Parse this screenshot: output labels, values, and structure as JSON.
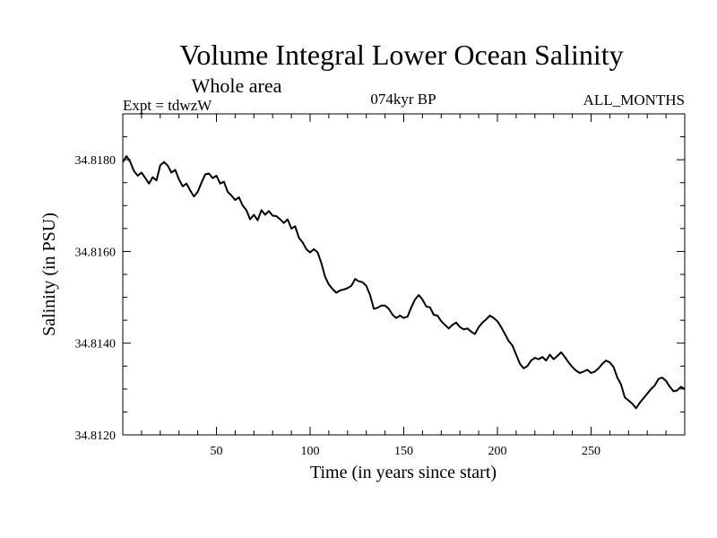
{
  "chart_data": {
    "type": "line",
    "title": "Volume Integral Lower Ocean Salinity",
    "subtitle": "Whole area",
    "experiment": "Expt = tdwzW",
    "period": "074kyr BP",
    "months": "ALL_MONTHS",
    "xlabel": "Time (in years since start)",
    "ylabel": "Salinity (in PSU)",
    "xlim": [
      0,
      300
    ],
    "ylim": [
      34.812,
      34.819
    ],
    "xticks": [
      50,
      100,
      150,
      200,
      250
    ],
    "xtick_labels": [
      "50",
      "100",
      "150",
      "200",
      "250"
    ],
    "yticks": [
      34.812,
      34.814,
      34.816,
      34.818
    ],
    "ytick_labels": [
      "34.8120",
      "34.8140",
      "34.8160",
      "34.8180"
    ],
    "grid": false,
    "series": [
      {
        "points": [
          [
            0,
            34.81795
          ],
          [
            2,
            34.81808
          ],
          [
            4,
            34.81795
          ],
          [
            6,
            34.81775
          ],
          [
            8,
            34.81765
          ],
          [
            10,
            34.81772
          ],
          [
            12,
            34.8176
          ],
          [
            14,
            34.81748
          ],
          [
            16,
            34.81762
          ],
          [
            18,
            34.81755
          ],
          [
            20,
            34.81788
          ],
          [
            22,
            34.81795
          ],
          [
            24,
            34.81787
          ],
          [
            26,
            34.81772
          ],
          [
            28,
            34.81778
          ],
          [
            30,
            34.81757
          ],
          [
            32,
            34.81742
          ],
          [
            34,
            34.81748
          ],
          [
            36,
            34.81733
          ],
          [
            38,
            34.8172
          ],
          [
            40,
            34.8173
          ],
          [
            42,
            34.8175
          ],
          [
            44,
            34.81768
          ],
          [
            46,
            34.8177
          ],
          [
            48,
            34.8176
          ],
          [
            50,
            34.81765
          ],
          [
            52,
            34.81748
          ],
          [
            54,
            34.81752
          ],
          [
            56,
            34.8173
          ],
          [
            58,
            34.81722
          ],
          [
            60,
            34.81712
          ],
          [
            62,
            34.81718
          ],
          [
            64,
            34.817
          ],
          [
            66,
            34.8169
          ],
          [
            68,
            34.8167
          ],
          [
            70,
            34.8168
          ],
          [
            72,
            34.81668
          ],
          [
            74,
            34.8169
          ],
          [
            76,
            34.8168
          ],
          [
            78,
            34.81688
          ],
          [
            80,
            34.81678
          ],
          [
            82,
            34.81677
          ],
          [
            84,
            34.8167
          ],
          [
            86,
            34.81662
          ],
          [
            88,
            34.8167
          ],
          [
            90,
            34.8165
          ],
          [
            92,
            34.81655
          ],
          [
            94,
            34.8163
          ],
          [
            96,
            34.8162
          ],
          [
            98,
            34.81605
          ],
          [
            100,
            34.81598
          ],
          [
            102,
            34.81605
          ],
          [
            104,
            34.81598
          ],
          [
            106,
            34.81575
          ],
          [
            108,
            34.81545
          ],
          [
            110,
            34.81528
          ],
          [
            112,
            34.81518
          ],
          [
            114,
            34.8151
          ],
          [
            116,
            34.81515
          ],
          [
            118,
            34.81517
          ],
          [
            120,
            34.8152
          ],
          [
            122,
            34.81525
          ],
          [
            124,
            34.8154
          ],
          [
            126,
            34.81535
          ],
          [
            128,
            34.81533
          ],
          [
            130,
            34.81525
          ],
          [
            132,
            34.81505
          ],
          [
            134,
            34.81475
          ],
          [
            136,
            34.81477
          ],
          [
            138,
            34.81482
          ],
          [
            140,
            34.81482
          ],
          [
            142,
            34.81475
          ],
          [
            144,
            34.81462
          ],
          [
            146,
            34.81455
          ],
          [
            148,
            34.8146
          ],
          [
            150,
            34.81455
          ],
          [
            152,
            34.81458
          ],
          [
            154,
            34.81478
          ],
          [
            156,
            34.81495
          ],
          [
            158,
            34.81505
          ],
          [
            160,
            34.81495
          ],
          [
            162,
            34.8148
          ],
          [
            164,
            34.81478
          ],
          [
            166,
            34.81462
          ],
          [
            168,
            34.8146
          ],
          [
            170,
            34.81448
          ],
          [
            172,
            34.8144
          ],
          [
            174,
            34.81432
          ],
          [
            176,
            34.8144
          ],
          [
            178,
            34.81445
          ],
          [
            180,
            34.81435
          ],
          [
            182,
            34.8143
          ],
          [
            184,
            34.81432
          ],
          [
            186,
            34.81425
          ],
          [
            188,
            34.8142
          ],
          [
            190,
            34.81435
          ],
          [
            192,
            34.81445
          ],
          [
            194,
            34.81452
          ],
          [
            196,
            34.8146
          ],
          [
            198,
            34.81455
          ],
          [
            200,
            34.81448
          ],
          [
            202,
            34.81435
          ],
          [
            204,
            34.8142
          ],
          [
            206,
            34.81405
          ],
          [
            208,
            34.81395
          ],
          [
            210,
            34.81375
          ],
          [
            212,
            34.81355
          ],
          [
            214,
            34.81345
          ],
          [
            216,
            34.8135
          ],
          [
            218,
            34.81362
          ],
          [
            220,
            34.81368
          ],
          [
            222,
            34.81365
          ],
          [
            224,
            34.8137
          ],
          [
            226,
            34.81362
          ],
          [
            228,
            34.81375
          ],
          [
            230,
            34.81365
          ],
          [
            232,
            34.81372
          ],
          [
            234,
            34.8138
          ],
          [
            236,
            34.8137
          ],
          [
            238,
            34.81358
          ],
          [
            240,
            34.81348
          ],
          [
            242,
            34.8134
          ],
          [
            244,
            34.81335
          ],
          [
            246,
            34.81338
          ],
          [
            248,
            34.81342
          ],
          [
            250,
            34.81335
          ],
          [
            252,
            34.81338
          ],
          [
            254,
            34.81345
          ],
          [
            256,
            34.81355
          ],
          [
            258,
            34.81362
          ],
          [
            260,
            34.81358
          ],
          [
            262,
            34.81348
          ],
          [
            264,
            34.81325
          ],
          [
            266,
            34.8131
          ],
          [
            268,
            34.81282
          ],
          [
            270,
            34.81275
          ],
          [
            272,
            34.81268
          ],
          [
            274,
            34.81258
          ],
          [
            276,
            34.8127
          ],
          [
            278,
            34.8128
          ],
          [
            280,
            34.8129
          ],
          [
            282,
            34.813
          ],
          [
            284,
            34.81308
          ],
          [
            286,
            34.81322
          ],
          [
            288,
            34.81325
          ],
          [
            290,
            34.81318
          ],
          [
            292,
            34.81305
          ],
          [
            294,
            34.81295
          ],
          [
            296,
            34.81297
          ],
          [
            298,
            34.81305
          ],
          [
            300,
            34.813
          ]
        ]
      }
    ]
  }
}
